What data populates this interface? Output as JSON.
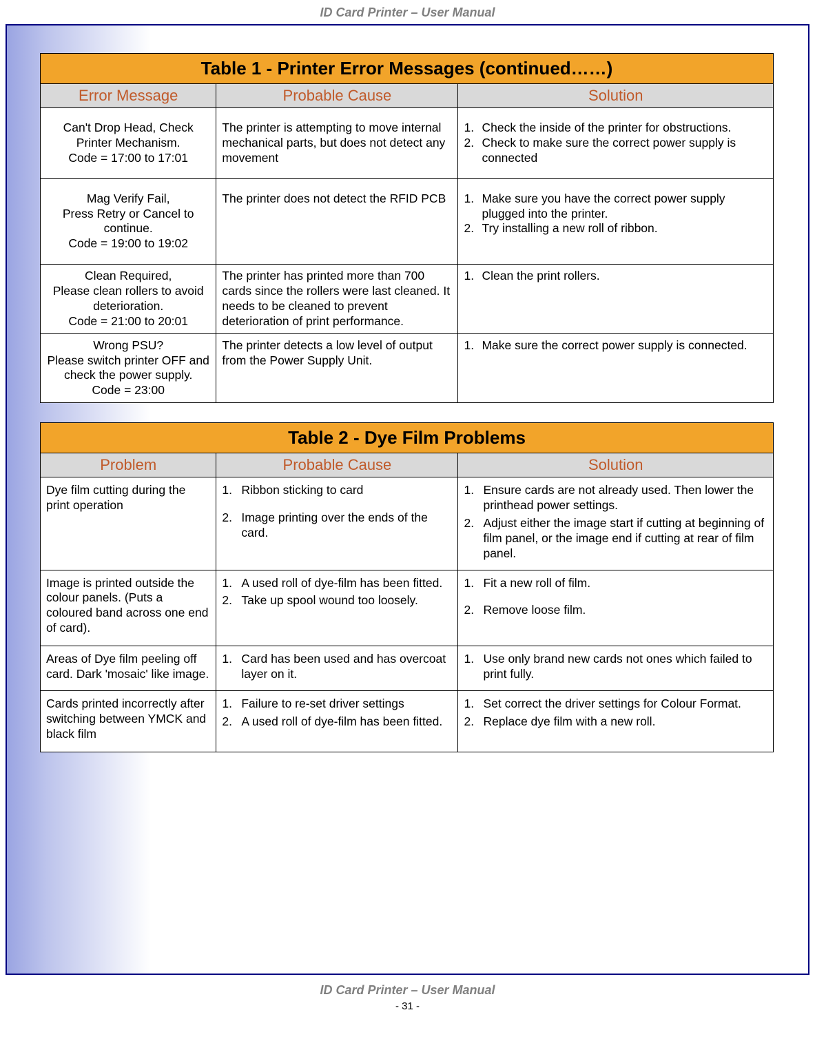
{
  "header": {
    "title": "ID Card Printer – User Manual"
  },
  "footer": {
    "title": "ID Card Printer – User Manual",
    "page": "- 31 -"
  },
  "colors": {
    "title_bg": "#f2a42a",
    "header_bg": "#d9d9d9",
    "header_text": "#c05a2a",
    "border": "#000000",
    "frame_border": "#000080",
    "gradient_start": "#9aa4e2"
  },
  "table1": {
    "title": "Table 1 - Printer Error Messages (continued……)",
    "headers": [
      "Error Message",
      "Probable Cause",
      "Solution"
    ],
    "rows": [
      {
        "error": "Can't Drop Head, Check Printer Mechanism.\nCode = 17:00 to 17:01",
        "cause": "The printer is attempting to move internal mechanical parts, but does not detect any movement",
        "solution": [
          "Check the inside of the printer for obstructions.",
          "Check to make sure the correct power supply is connected"
        ]
      },
      {
        "error": "Mag Verify Fail,\nPress Retry or Cancel to continue.\nCode = 19:00 to 19:02",
        "cause": "The printer does not detect the RFID PCB",
        "solution": [
          "Make sure you have the correct power supply plugged into the printer.",
          "Try installing a new roll of ribbon."
        ]
      },
      {
        "error": "Clean Required,\nPlease clean rollers to avoid deterioration.\nCode = 21:00 to 20:01",
        "cause": "The printer has printed more than 700 cards since the rollers were last cleaned. It needs to be cleaned to prevent deterioration of print performance.",
        "solution": [
          "Clean the print rollers."
        ],
        "tight": true
      },
      {
        "error": "Wrong PSU?\nPlease switch printer OFF and check the power supply.\nCode = 23:00",
        "cause": "The printer detects a low level of output from the Power Supply Unit.",
        "solution": [
          "Make sure the correct power supply is connected."
        ],
        "tight": true
      }
    ]
  },
  "table2": {
    "title": "Table 2 - Dye Film Problems",
    "headers": [
      "Problem",
      "Probable Cause",
      "Solution"
    ],
    "rows": [
      {
        "problem": "Dye film cutting during the print operation",
        "cause": [
          "Ribbon sticking to card",
          "Image printing over the ends of the card."
        ],
        "cause_spaced": true,
        "solution": [
          "Ensure cards are not already used. Then lower the printhead power settings.",
          "Adjust either the image start if cutting at beginning of film panel, or the image end if cutting at rear of film panel."
        ]
      },
      {
        "problem": "Image is printed outside the colour panels. (Puts a coloured band across one end of card).",
        "cause": [
          "A used roll of dye-film has been fitted.",
          "Take up spool wound too loosely."
        ],
        "solution": [
          "Fit a new roll of film.",
          "Remove loose film."
        ],
        "solution_spaced": true,
        "pad_bottom": true
      },
      {
        "problem": "Areas of Dye film peeling off card. Dark 'mosaic' like image.",
        "cause": [
          "Card has been used and has overcoat layer on it."
        ],
        "solution": [
          "Use only brand new cards not ones which failed to print fully."
        ]
      },
      {
        "problem": "Cards printed incorrectly after switching between YMCK and black film",
        "cause": [
          "Failure to re-set driver settings",
          "A used roll of dye-film has been fitted."
        ],
        "solution": [
          "Set correct the driver settings for Colour Format.",
          "Replace dye film with a new roll."
        ],
        "pad_bottom_small": true
      }
    ]
  }
}
